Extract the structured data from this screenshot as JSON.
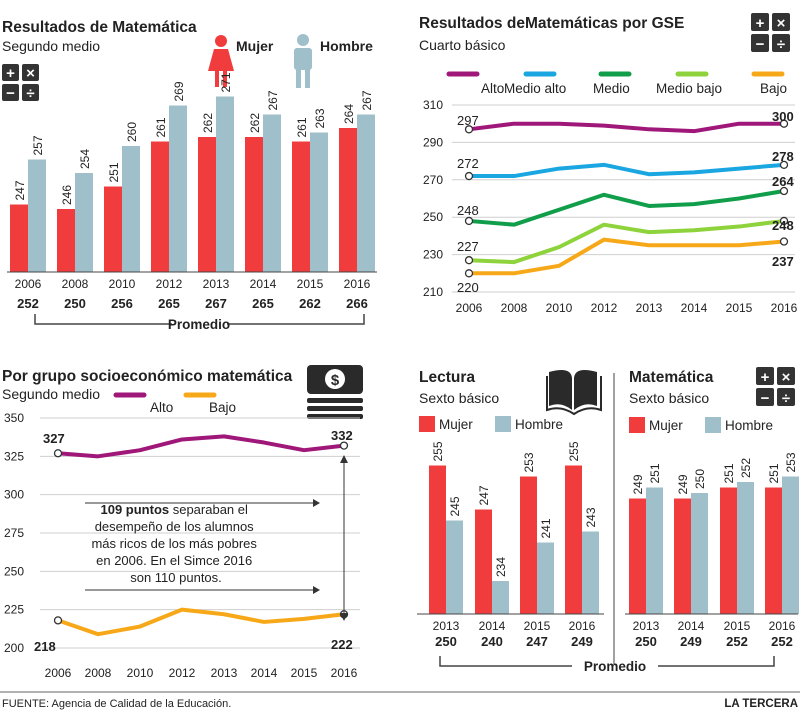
{
  "colors": {
    "mujer": "#f03c3c",
    "hombre": "#9fbfca",
    "alto": "#a0177a",
    "medio_alto": "#1aa6e0",
    "medio": "#119e4b",
    "medio_bajo": "#8ed33c",
    "bajo": "#f7a818",
    "grid": "#cfcfcf"
  },
  "symbols": {
    "plus": "+",
    "times": "×",
    "minus": "−",
    "divide": "÷",
    "dollar": "$"
  },
  "panel1": {
    "title": "Resultados de Matemática",
    "subtitle": "Segundo medio",
    "legend_mujer": "Mujer",
    "legend_hombre": "Hombre",
    "promedio_label": "Promedio"
  },
  "panel2": {
    "title": "Resultados deMatemáticas por GSE",
    "subtitle": "Cuarto básico"
  },
  "panel3": {
    "title": "Por grupo socioeconómico matemática",
    "subtitle": "Segundo medio",
    "note_bold": "109 puntos",
    "note_l1": " separaban el",
    "note_l2": "desempeño de los alumnos",
    "note_l3": "más ricos de los más pobres",
    "note_l4": "en 2006. En el Simce 2016",
    "note_l5": "son 110 puntos."
  },
  "panel4": {
    "lectura_title": "Lectura",
    "lectura_subtitle": "Sexto básico",
    "mat_title": "Matemática",
    "mat_subtitle": "Sexto básico",
    "legend_mujer": "Mujer",
    "legend_hombre": "Hombre",
    "promedio_label": "Promedio"
  },
  "footer": {
    "source": "FUENTE: Agencia de Calidad de la Educación.",
    "brand": "LA TERCERA"
  },
  "chart_data": [
    {
      "id": "math2m",
      "type": "bar",
      "title": "Resultados de Matemática",
      "subtitle": "Segundo medio",
      "categories": [
        "2006",
        "2008",
        "2010",
        "2012",
        "2013",
        "2014",
        "2015",
        "2016"
      ],
      "series": [
        {
          "name": "Mujer",
          "values": [
            247,
            246,
            251,
            261,
            262,
            262,
            261,
            264
          ]
        },
        {
          "name": "Hombre",
          "values": [
            257,
            254,
            260,
            269,
            271,
            267,
            263,
            267
          ]
        }
      ],
      "promedio": [
        252,
        250,
        256,
        265,
        267,
        265,
        262,
        266
      ]
    },
    {
      "id": "gse4b",
      "type": "line",
      "title": "Resultados deMatemáticas por GSE",
      "subtitle": "Cuarto básico",
      "x": [
        "2006",
        "2008",
        "2010",
        "2012",
        "2013",
        "2014",
        "2015",
        "2016"
      ],
      "ylim": [
        210,
        310
      ],
      "yticks": [
        210,
        230,
        250,
        270,
        290,
        310
      ],
      "series": [
        {
          "name": "Alto",
          "values": [
            297,
            300,
            300,
            299,
            297,
            296,
            300,
            300
          ]
        },
        {
          "name": "Medio alto",
          "values": [
            272,
            272,
            276,
            278,
            273,
            274,
            276,
            278
          ]
        },
        {
          "name": "Medio",
          "values": [
            248,
            246,
            254,
            262,
            256,
            257,
            260,
            264
          ]
        },
        {
          "name": "Medio bajo",
          "values": [
            227,
            226,
            234,
            246,
            242,
            243,
            245,
            248
          ]
        },
        {
          "name": "Bajo",
          "values": [
            220,
            220,
            224,
            238,
            235,
            235,
            235,
            237
          ]
        }
      ]
    },
    {
      "id": "gse2m",
      "type": "line",
      "title": "Por grupo socioeconómico matemática",
      "subtitle": "Segundo medio",
      "x": [
        "2006",
        "2008",
        "2010",
        "2012",
        "2013",
        "2014",
        "2015",
        "2016"
      ],
      "ylim": [
        200,
        350
      ],
      "yticks": [
        200,
        225,
        250,
        275,
        300,
        325,
        350
      ],
      "series": [
        {
          "name": "Alto",
          "values": [
            327,
            325,
            329,
            336,
            338,
            334,
            329,
            332
          ]
        },
        {
          "name": "Bajo",
          "values": [
            218,
            209,
            214,
            225,
            222,
            217,
            219,
            222
          ]
        }
      ]
    },
    {
      "id": "lect6b",
      "type": "bar",
      "title": "Lectura",
      "subtitle": "Sexto básico",
      "categories": [
        "2013",
        "2014",
        "2015",
        "2016"
      ],
      "series": [
        {
          "name": "Mujer",
          "values": [
            255,
            247,
            253,
            255
          ]
        },
        {
          "name": "Hombre",
          "values": [
            245,
            234,
            241,
            243
          ]
        }
      ],
      "promedio": [
        250,
        240,
        247,
        249
      ]
    },
    {
      "id": "mat6b",
      "type": "bar",
      "title": "Matemática",
      "subtitle": "Sexto básico",
      "categories": [
        "2013",
        "2014",
        "2015",
        "2016"
      ],
      "series": [
        {
          "name": "Mujer",
          "values": [
            249,
            249,
            251,
            251
          ]
        },
        {
          "name": "Hombre",
          "values": [
            251,
            250,
            252,
            253
          ]
        }
      ],
      "promedio": [
        250,
        249,
        252,
        252
      ]
    }
  ]
}
